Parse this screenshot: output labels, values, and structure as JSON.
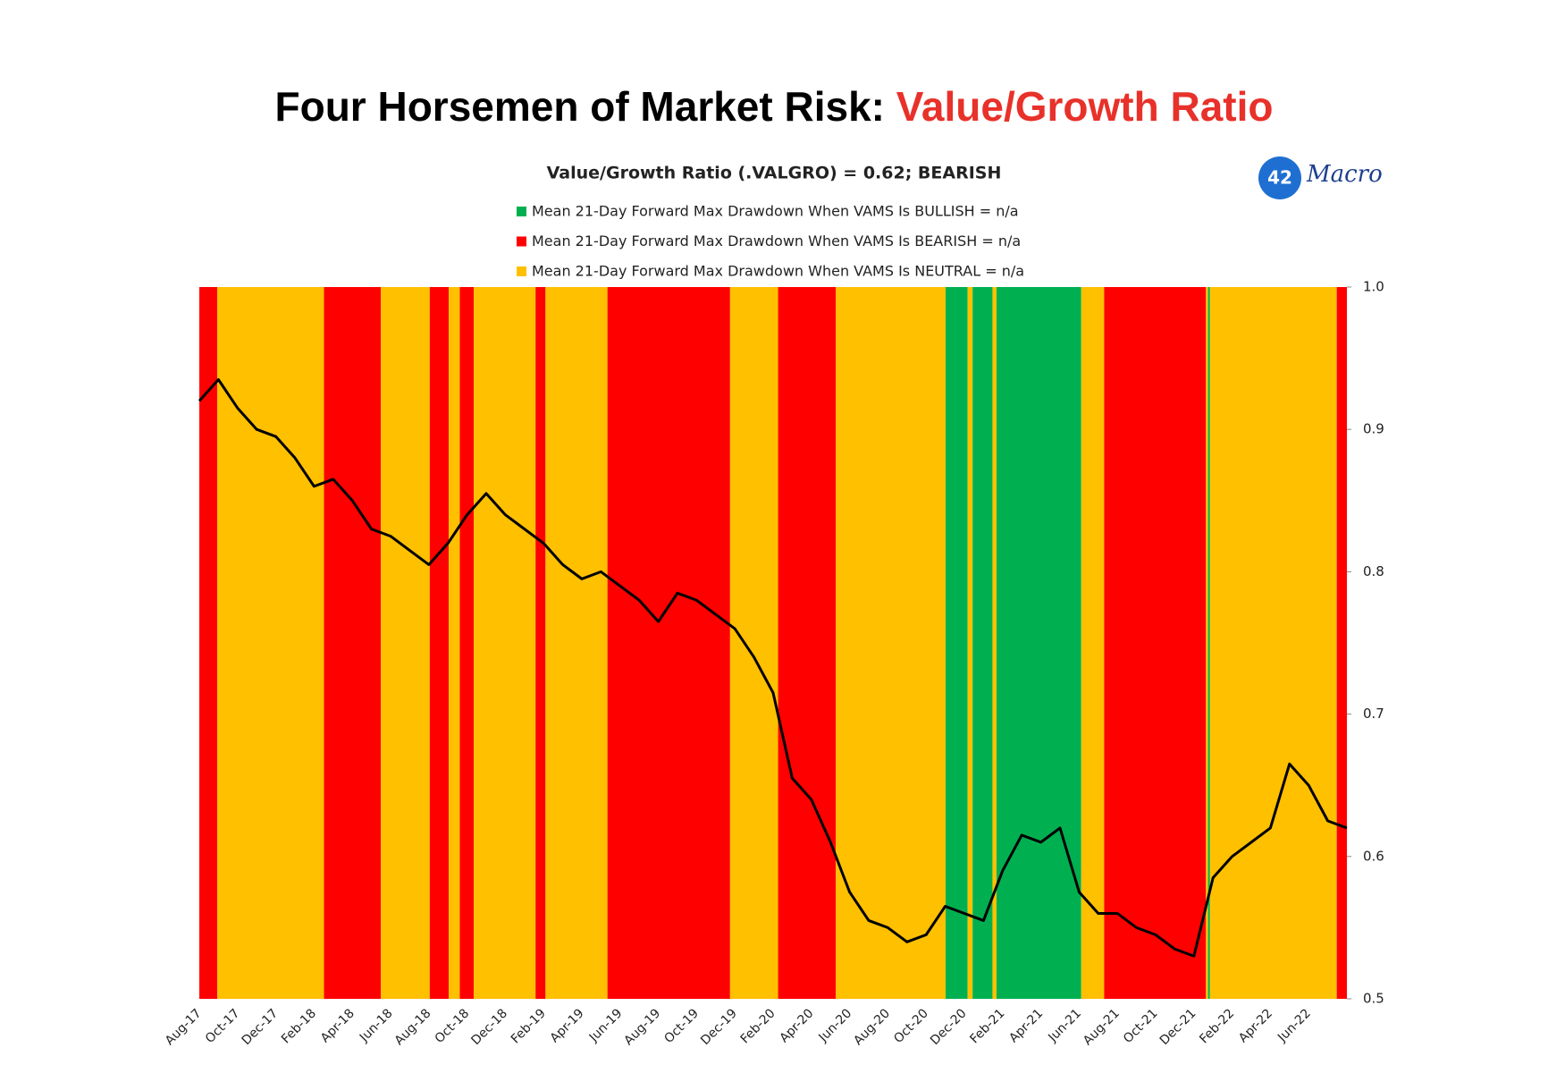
{
  "chart_data": {
    "type": "line",
    "title": "Four Horsemen of Market Risk:",
    "title_highlight": "Value/Growth Ratio",
    "subtitle": "Value/Growth Ratio (.VALGRO) = 0.62; BEARISH",
    "logo": {
      "number": "42",
      "text": "Macro"
    },
    "legend": [
      {
        "label": "Mean 21-Day Forward Max Drawdown When VAMS Is BULLISH = n/a",
        "color": "#00b050"
      },
      {
        "label": "Mean 21-Day Forward Max Drawdown When VAMS Is BEARISH = n/a",
        "color": "#ff0000"
      },
      {
        "label": "Mean 21-Day Forward Max Drawdown When VAMS Is NEUTRAL = n/a",
        "color": "#ffc000"
      }
    ],
    "categories": [
      "Aug-17",
      null,
      "Oct-17",
      null,
      "Dec-17",
      null,
      "Feb-18",
      null,
      "Apr-18",
      null,
      "Jun-18",
      null,
      "Aug-18",
      null,
      "Oct-18",
      null,
      "Dec-18",
      null,
      "Feb-19",
      null,
      "Apr-19",
      null,
      "Jun-19",
      null,
      "Aug-19",
      null,
      "Oct-19",
      null,
      "Dec-19",
      null,
      "Feb-20",
      null,
      "Apr-20",
      null,
      "Jun-20",
      null,
      "Aug-20",
      null,
      "Oct-20",
      null,
      "Dec-20",
      null,
      "Feb-21",
      null,
      "Apr-21",
      null,
      "Jun-21",
      null,
      "Aug-21",
      null,
      "Oct-21",
      null,
      "Dec-21",
      null,
      "Feb-22",
      null,
      "Apr-22",
      null,
      "Jun-22",
      null,
      null
    ],
    "series": [
      {
        "color": "#000000",
        "values": [
          0.92,
          0.935,
          0.915,
          0.9,
          0.895,
          0.88,
          0.86,
          0.865,
          0.85,
          0.83,
          0.825,
          0.815,
          0.805,
          0.82,
          0.84,
          0.855,
          0.84,
          0.83,
          0.82,
          0.805,
          0.795,
          0.8,
          0.79,
          0.78,
          0.765,
          0.785,
          0.78,
          0.77,
          0.76,
          0.74,
          0.715,
          0.655,
          0.64,
          0.61,
          0.575,
          0.555,
          0.55,
          0.54,
          0.545,
          0.565,
          0.56,
          0.555,
          0.59,
          0.615,
          0.61,
          0.62,
          0.575,
          0.56,
          0.56,
          0.55,
          0.545,
          0.535,
          0.53,
          0.585,
          0.6,
          0.61,
          0.62,
          0.665,
          0.65,
          0.625,
          0.62
        ]
      }
    ],
    "bands": [
      {
        "from": 0,
        "to": 0.94,
        "color": "#ff0000"
      },
      {
        "from": 0.94,
        "to": 6.52,
        "color": "#ffc000"
      },
      {
        "from": 6.52,
        "to": 9.49,
        "color": "#ff0000"
      },
      {
        "from": 9.49,
        "to": 12.05,
        "color": "#ffc000"
      },
      {
        "from": 12.05,
        "to": 13.04,
        "color": "#ff0000"
      },
      {
        "from": 13.04,
        "to": 13.62,
        "color": "#ffc000"
      },
      {
        "from": 13.62,
        "to": 14.35,
        "color": "#ff0000"
      },
      {
        "from": 14.35,
        "to": 17.58,
        "color": "#ffc000"
      },
      {
        "from": 17.58,
        "to": 18.1,
        "color": "#ff0000"
      },
      {
        "from": 18.1,
        "to": 21.34,
        "color": "#ffc000"
      },
      {
        "from": 21.34,
        "to": 27.75,
        "color": "#ff0000"
      },
      {
        "from": 27.75,
        "to": 30.26,
        "color": "#ffc000"
      },
      {
        "from": 30.26,
        "to": 33.28,
        "color": "#ff0000"
      },
      {
        "from": 33.28,
        "to": 39.02,
        "color": "#ffc000"
      },
      {
        "from": 39.02,
        "to": 40.17,
        "color": "#00b050"
      },
      {
        "from": 40.17,
        "to": 40.43,
        "color": "#ffc000"
      },
      {
        "from": 40.43,
        "to": 41.47,
        "color": "#00b050"
      },
      {
        "from": 41.47,
        "to": 41.68,
        "color": "#ffc000"
      },
      {
        "from": 41.68,
        "to": 46.11,
        "color": "#00b050"
      },
      {
        "from": 46.11,
        "to": 47.31,
        "color": "#ffc000"
      },
      {
        "from": 47.31,
        "to": 52.63,
        "color": "#ff0000"
      },
      {
        "from": 52.63,
        "to": 52.74,
        "color": "#ffc000"
      },
      {
        "from": 52.74,
        "to": 52.84,
        "color": "#00b050"
      },
      {
        "from": 52.84,
        "to": 59.47,
        "color": "#ffc000"
      },
      {
        "from": 59.47,
        "to": 60,
        "color": "#ff0000"
      }
    ],
    "ylim": [
      0.5,
      1.0
    ],
    "yticks": [
      0.5,
      0.6,
      0.7,
      0.8,
      0.9,
      {
        "value": 1.0,
        "label": "1.0"
      }
    ]
  }
}
